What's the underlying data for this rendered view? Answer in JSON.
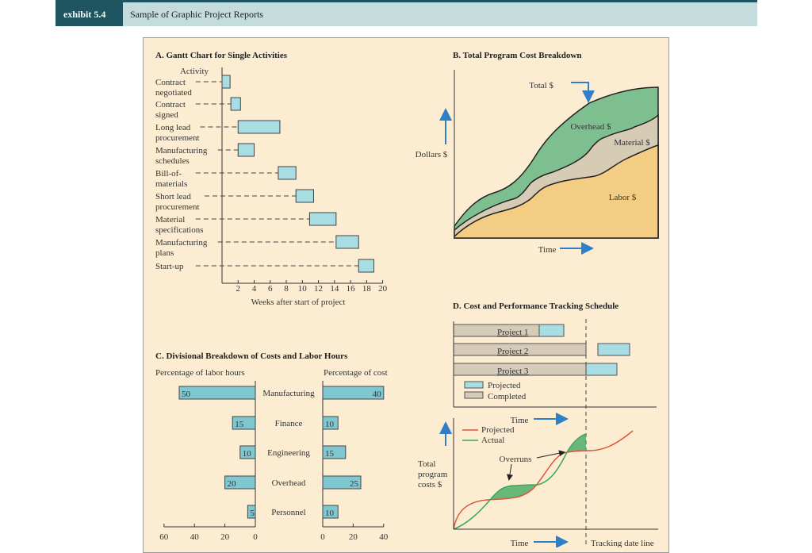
{
  "header": {
    "tag": "exhibit 5.4",
    "title": "Sample of Graphic Project Reports"
  },
  "colors": {
    "bar": "#a8dde3",
    "completed": "#d5cbb8",
    "overhead": "#7dbf8f",
    "material": "#d6cbb4",
    "labor": "#f4cd85",
    "projected_line": "#e0553a",
    "actual_line": "#3aa855",
    "arrow": "#2f7fc6"
  },
  "chart_data": [
    {
      "type": "gantt",
      "title": "A. Gantt Chart for Single Activities",
      "ylabel": "Activity",
      "xlabel": "Weeks after start of project",
      "xlim": [
        0,
        20
      ],
      "xticks": [
        2,
        4,
        6,
        8,
        10,
        12,
        14,
        16,
        18,
        20
      ],
      "tasks": [
        {
          "label": [
            "Contract",
            "negotiated"
          ],
          "start": 0,
          "end": 1
        },
        {
          "label": [
            "Contract",
            "signed"
          ],
          "start": 1.1,
          "end": 2.3
        },
        {
          "label": [
            "Long lead",
            "procurement"
          ],
          "start": 2,
          "end": 7.2
        },
        {
          "label": [
            "Manufacturing",
            "schedules"
          ],
          "start": 2,
          "end": 4
        },
        {
          "label": [
            "Bill-of-",
            "materials"
          ],
          "start": 7,
          "end": 9.2
        },
        {
          "label": [
            "Short lead",
            "procurement"
          ],
          "start": 9.2,
          "end": 11.4
        },
        {
          "label": [
            "Material",
            "specifications"
          ],
          "start": 10.9,
          "end": 14.2
        },
        {
          "label": [
            "Manufacturing",
            "plans"
          ],
          "start": 14.2,
          "end": 17
        },
        {
          "label": [
            "Start-up"
          ],
          "start": 17,
          "end": 18.9
        }
      ]
    },
    {
      "type": "area",
      "title": "B. Total Program Cost Breakdown",
      "ylabel": "Dollars $",
      "xlabel": "Time",
      "stacked": true,
      "series": [
        {
          "name": "Labor $"
        },
        {
          "name": "Material $"
        },
        {
          "name": "Overhead $"
        }
      ],
      "annotation": "Total $"
    },
    {
      "type": "bar",
      "title": "C. Divisional Breakdown of Costs and Labor Hours",
      "orientation": "horizontal",
      "categories": [
        "Manufacturing",
        "Finance",
        "Engineering",
        "Overhead",
        "Personnel"
      ],
      "left": {
        "label": "Percentage of labor hours",
        "values": [
          50,
          15,
          10,
          20,
          5
        ],
        "xlim": [
          60,
          0
        ],
        "ticks": [
          60,
          40,
          20,
          0
        ]
      },
      "right": {
        "label": "Percentage of cost",
        "values": [
          40,
          10,
          15,
          25,
          10
        ],
        "xlim": [
          0,
          40
        ],
        "ticks": [
          0,
          20,
          40
        ]
      }
    },
    {
      "type": "line",
      "title": "D. Cost and Performance Tracking Schedule",
      "projects": [
        {
          "name": "Project 1",
          "status": "ahead"
        },
        {
          "name": "Project 2",
          "status": "gap"
        },
        {
          "name": "Project 3",
          "status": "on track"
        }
      ],
      "legend_bars": [
        "Projected",
        "Completed"
      ],
      "top_xlabel": "Time",
      "ylabel": [
        "Total",
        "program",
        "costs $"
      ],
      "xlabel": "Time",
      "series": [
        {
          "name": "Projected"
        },
        {
          "name": "Actual"
        }
      ],
      "annotations": [
        "Overruns",
        "Tracking date line"
      ]
    }
  ]
}
